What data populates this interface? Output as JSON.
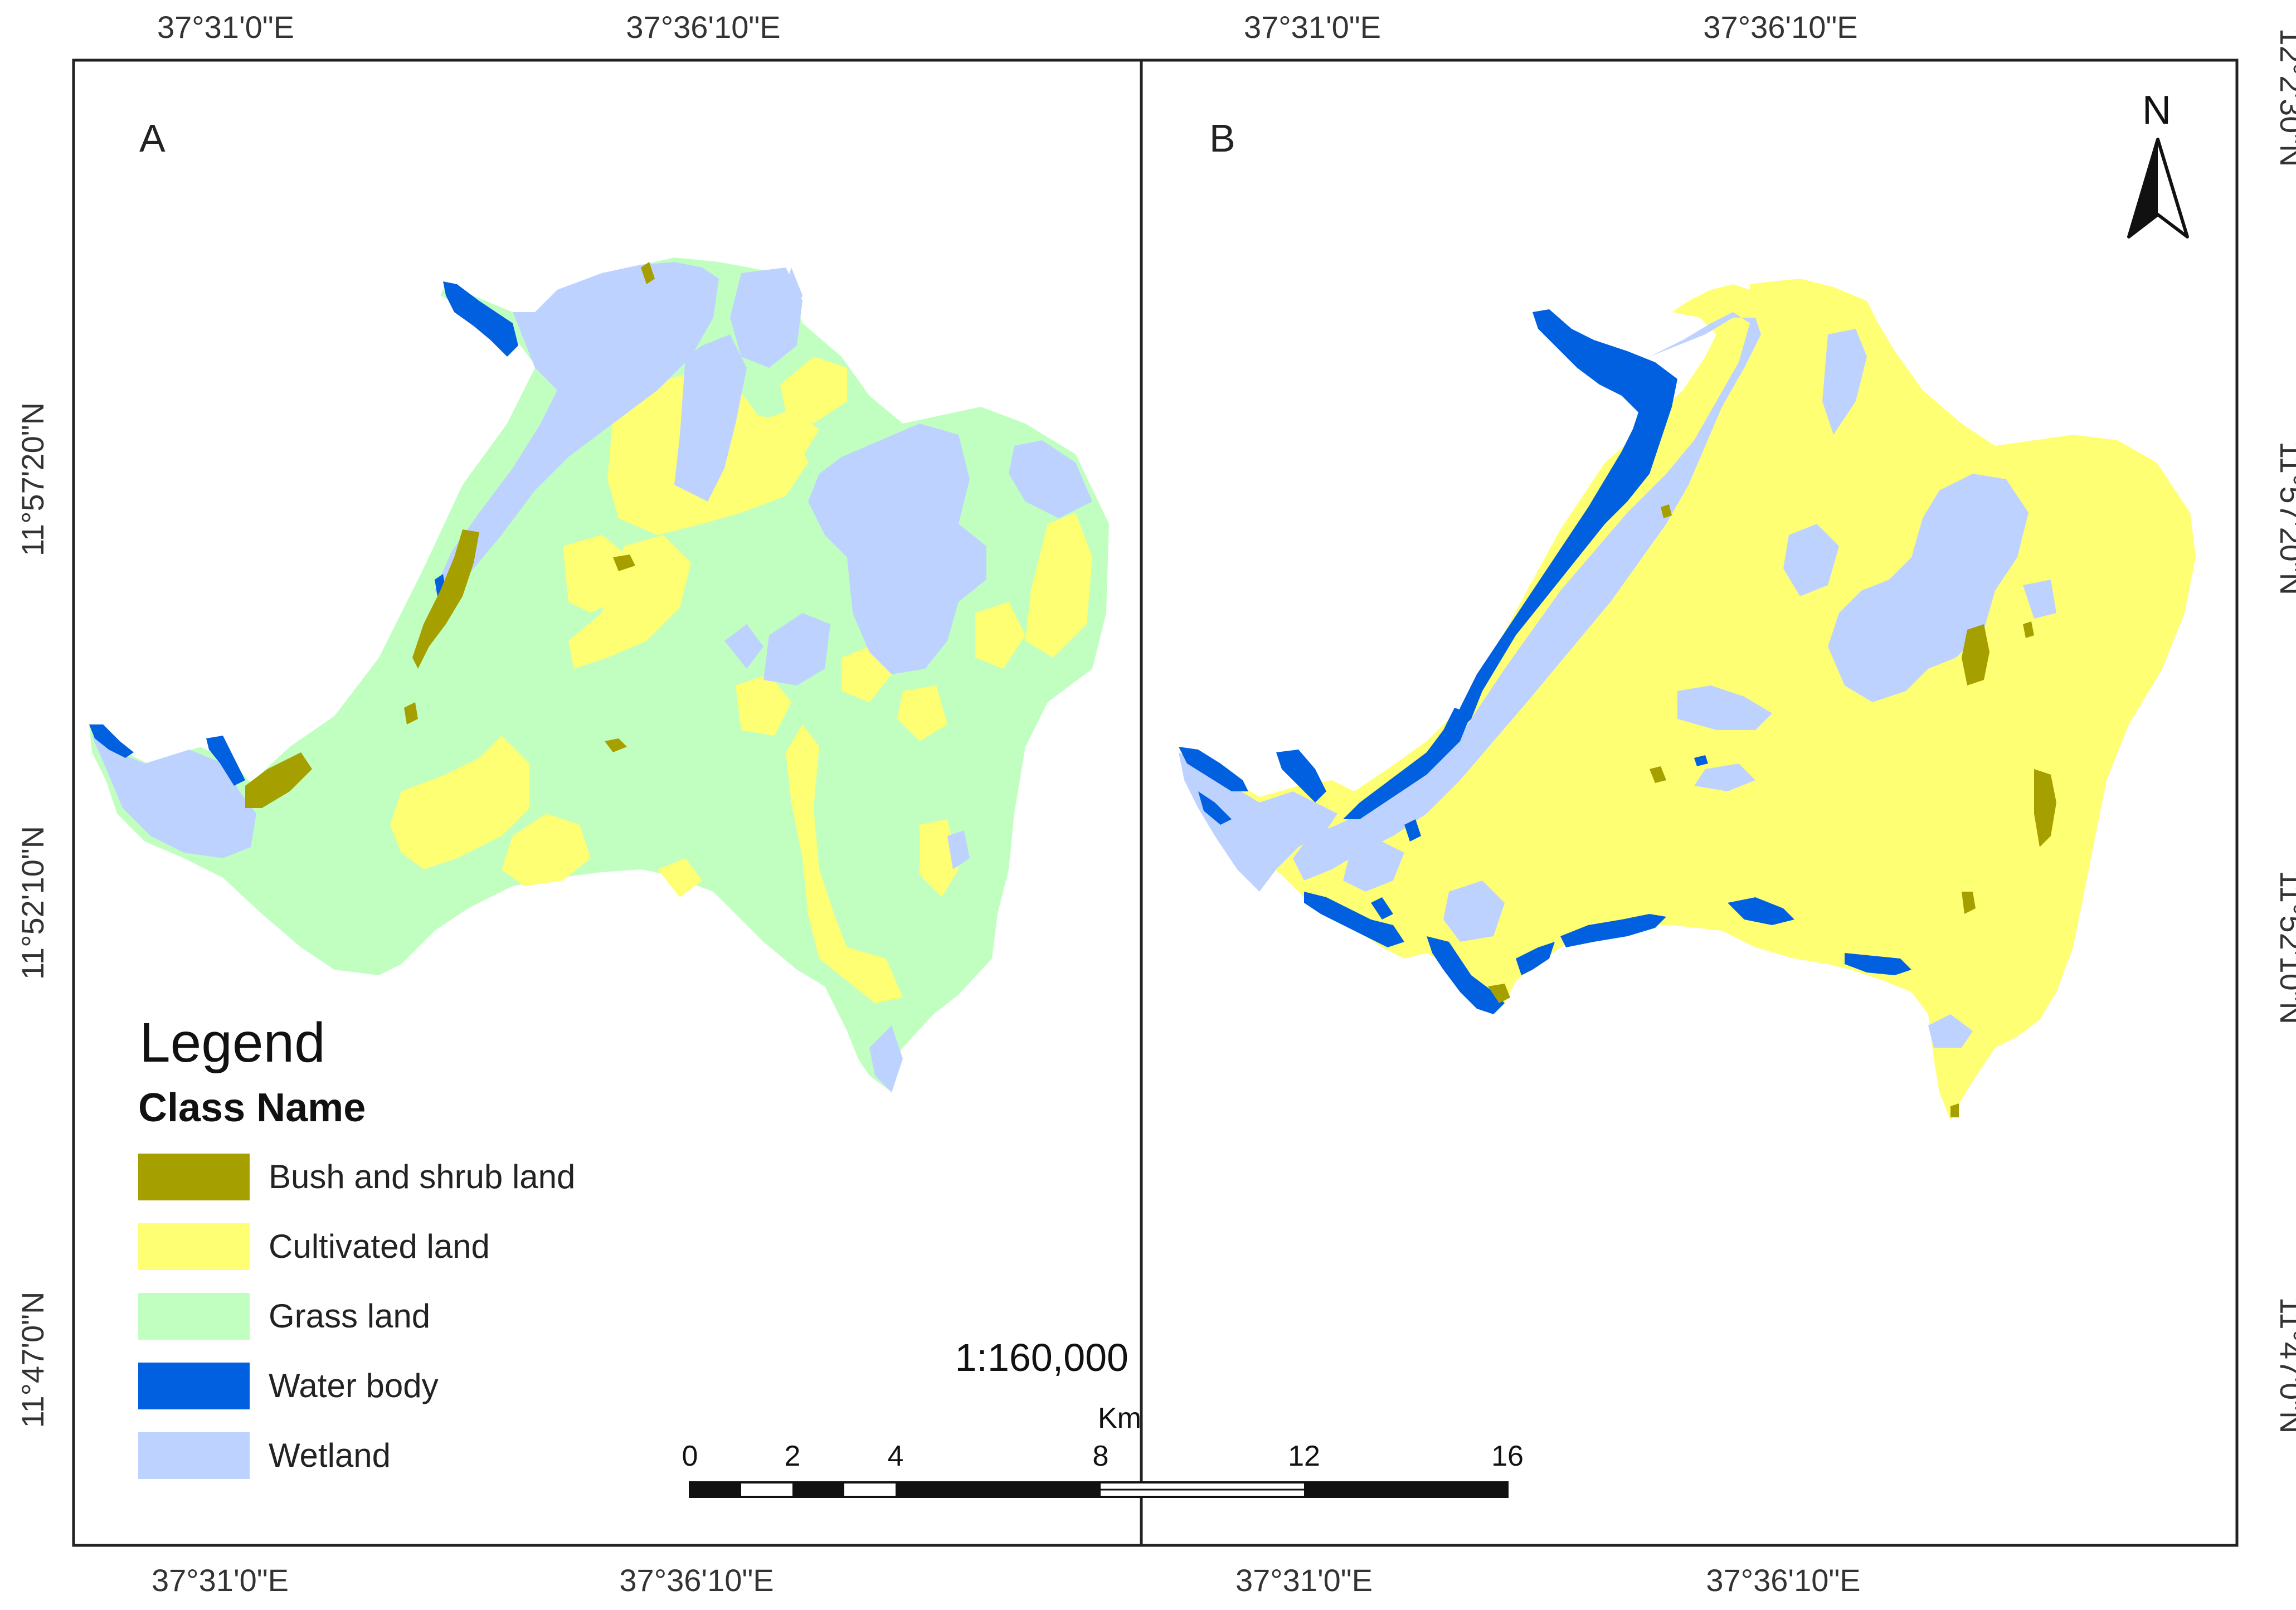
{
  "colors": {
    "bush": "#a5a000",
    "cultivated": "#ffff73",
    "grass": "#c0ffc0",
    "water": "#0060e0",
    "wetland": "#bed2ff",
    "frame": "#222222"
  },
  "top_coords": [
    "37°31'0\"E",
    "37°36'10\"E",
    "37°31'0\"E",
    "37°36'10\"E"
  ],
  "bottom_coords": [
    "37°31'0\"E",
    "37°36'10\"E",
    "37°31'0\"E",
    "37°36'10\"E"
  ],
  "left_coords": [
    "11°57'20\"N",
    "11°52'10\"N",
    "11°47'0\"N"
  ],
  "right_coords": [
    "12°2'30\"N",
    "11°57'20\"N",
    "11°52'10\"N",
    "11°47'0\"N"
  ],
  "panels": [
    {
      "label": "A",
      "dominant": "Grass land"
    },
    {
      "label": "B",
      "dominant": "Cultivated land"
    }
  ],
  "legend": {
    "title": "Legend",
    "subtitle": "Class Name",
    "items": [
      {
        "label": "Bush and shrub land",
        "color_key": "bush"
      },
      {
        "label": "Cultivated land",
        "color_key": "cultivated"
      },
      {
        "label": "Grass land",
        "color_key": "grass"
      },
      {
        "label": "Water body",
        "color_key": "water"
      },
      {
        "label": "Wetland",
        "color_key": "wetland"
      }
    ]
  },
  "scale": {
    "ratio": "1:160,000",
    "unit": "Km",
    "ticks": [
      "0",
      "2",
      "4",
      "8",
      "12",
      "16"
    ]
  },
  "north_arrow": {
    "label": "N",
    "icon": "north-arrow-icon"
  }
}
